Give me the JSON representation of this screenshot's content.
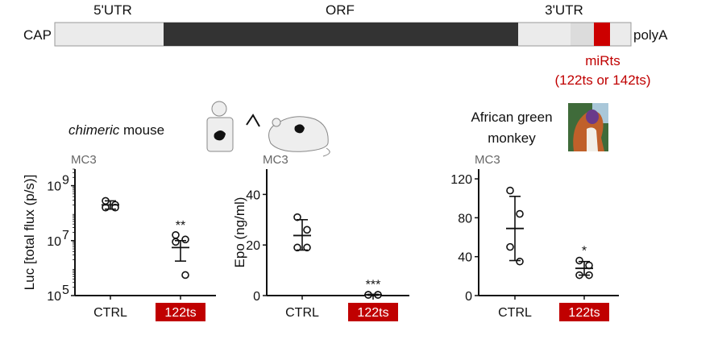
{
  "construct": {
    "cap": "CAP",
    "polyA": "polyA",
    "utr5": "5'UTR",
    "orf": "ORF",
    "utr3": "3'UTR",
    "mirts": "miRts",
    "mirts_detail": "(122ts or 142ts)",
    "colors": {
      "utr": "#ebebeb",
      "orf": "#333333",
      "mirts": "#cc0000"
    }
  },
  "panels": {
    "mouse_title_italic": "chimeric",
    "mouse_title_rest": " mouse",
    "monkey_title_line1": "African green",
    "monkey_title_line2": "monkey"
  },
  "chart_data": [
    {
      "type": "scatter",
      "subtitle": "MC3",
      "ylabel": "Luc [total flux (p/s)]",
      "yscale": "log",
      "ylim": [
        100000,
        4000000000
      ],
      "yticks": [
        100000,
        10000000,
        1000000000
      ],
      "ytick_labels": [
        [
          "10",
          "5"
        ],
        [
          "10",
          "7"
        ],
        [
          "10",
          "9"
        ]
      ],
      "categories": [
        "CTRL",
        "122ts"
      ],
      "points": [
        [
          280000000,
          200000000,
          160000000,
          160000000
        ],
        [
          16000000,
          11000000,
          9000000,
          560000
        ]
      ],
      "mean": [
        200000000,
        5600000
      ],
      "error": [
        [
          140000000,
          280000000
        ],
        [
          1800000,
          10000000
        ]
      ],
      "significance": [
        "",
        "**"
      ]
    },
    {
      "type": "scatter",
      "subtitle": "MC3",
      "ylabel": "Epo (ng/ml)",
      "ylim": [
        0,
        50
      ],
      "yticks": [
        0,
        20,
        40
      ],
      "ytick_labels": [
        [
          "0",
          ""
        ],
        [
          "20",
          ""
        ],
        [
          "40",
          ""
        ]
      ],
      "categories": [
        "CTRL",
        "122ts"
      ],
      "points": [
        [
          31,
          26,
          19,
          19
        ],
        [
          0.3,
          0.3,
          0.3,
          0.3
        ]
      ],
      "mean": [
        23.75,
        0.3
      ],
      "error": [
        [
          18,
          30
        ],
        [
          0.1,
          0.5
        ]
      ],
      "significance": [
        "",
        "***"
      ]
    },
    {
      "type": "scatter",
      "subtitle": "MC3",
      "ylabel": "",
      "ylim": [
        0,
        130
      ],
      "yticks": [
        0,
        40,
        80,
        120
      ],
      "ytick_labels": [
        [
          "0",
          ""
        ],
        [
          "40",
          ""
        ],
        [
          "80",
          ""
        ],
        [
          "120",
          ""
        ]
      ],
      "categories": [
        "CTRL",
        "122ts"
      ],
      "points": [
        [
          108,
          84,
          50,
          35
        ],
        [
          36,
          31,
          21,
          21
        ]
      ],
      "mean": [
        69,
        28
      ],
      "error": [
        [
          36,
          102
        ],
        [
          21,
          35
        ]
      ],
      "significance": [
        "",
        "*"
      ]
    }
  ]
}
